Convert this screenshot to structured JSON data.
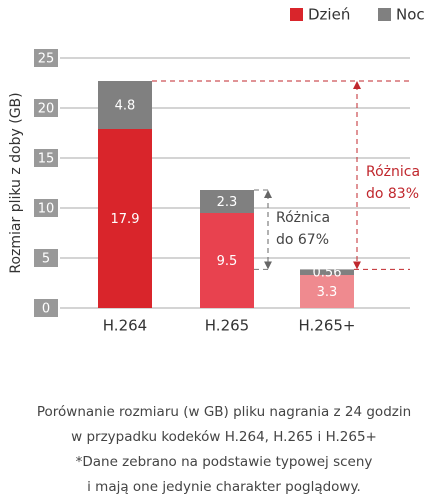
{
  "chart_data": {
    "type": "stacked-bar",
    "y_label": "Rozmiar pliku z doby (GB)",
    "categories": [
      "H.264",
      "H.265",
      "H.265+"
    ],
    "series": [
      {
        "name": "Dzień",
        "color": "#d9252b",
        "colors": [
          "#d9252b",
          "#e8424f",
          "#ef8a8f"
        ],
        "values": [
          17.9,
          9.5,
          3.3
        ]
      },
      {
        "name": "Noc",
        "color": "#808080",
        "values": [
          4.8,
          2.3,
          0.56
        ]
      }
    ],
    "ylim": [
      0,
      25
    ],
    "yticks": [
      0,
      5,
      10,
      15,
      20,
      25
    ],
    "grid": true,
    "legend": "top-right",
    "annotations": [
      {
        "lines": [
          "Różnica",
          "do 67%"
        ],
        "color": "#444444"
      },
      {
        "lines": [
          "Różnica",
          "do 83%"
        ],
        "color": "#c0272d"
      }
    ],
    "caption": [
      "Porównanie rozmiaru (w GB) pliku nagrania z 24 godzin",
      "w przypadku kodeków H.264, H.265 i H.265+",
      "*Dane zebrano na podstawie typowej sceny",
      "i mają one jedynie charakter poglądowy."
    ]
  }
}
